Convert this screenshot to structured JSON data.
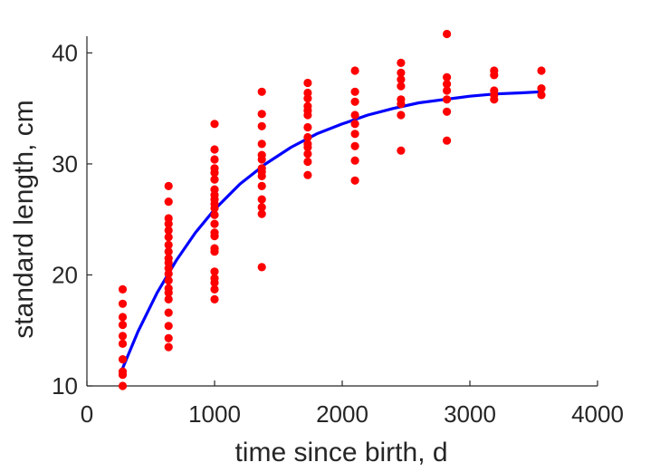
{
  "chart_data": {
    "type": "scatter",
    "title": "",
    "xlabel": "time since birth, d",
    "ylabel": "standard length, cm",
    "xlim": [
      0,
      4000
    ],
    "ylim": [
      10,
      41.5
    ],
    "xticks": [
      0,
      1000,
      2000,
      3000,
      4000
    ],
    "yticks": [
      10,
      20,
      30,
      40
    ],
    "xtick_labels": [
      "0",
      "1000",
      "2000",
      "3000",
      "4000"
    ],
    "ytick_labels": [
      "10",
      "20",
      "30",
      "40"
    ],
    "grid": false,
    "legend": "none",
    "colors": {
      "points": "#ff0000",
      "curve": "#0000ff",
      "axis": "#262626"
    },
    "series": [
      {
        "kind": "scatter",
        "groups": [
          {
            "x": 280,
            "y": [
              18.7,
              17.4,
              16.2,
              15.5,
              14.5,
              13.8,
              12.4,
              11.3,
              11.0,
              10.0
            ]
          },
          {
            "x": 640,
            "y": [
              28.0,
              26.6,
              25.1,
              24.6,
              24.0,
              23.4,
              22.7,
              22.1,
              21.5,
              21.1,
              20.6,
              20.1,
              19.5,
              18.8,
              18.4,
              17.8,
              16.6,
              15.4,
              14.3,
              13.5
            ]
          },
          {
            "x": 1000,
            "y": [
              33.6,
              31.3,
              30.4,
              29.6,
              29.2,
              28.6,
              27.7,
              27.2,
              26.8,
              26.4,
              26.0,
              25.4,
              24.6,
              23.8,
              23.5,
              22.4,
              22.1,
              20.3,
              19.7,
              19.3,
              18.7,
              17.8
            ]
          },
          {
            "x": 1370,
            "y": [
              36.5,
              34.5,
              33.4,
              31.8,
              30.8,
              30.4,
              29.6,
              29.3,
              28.9,
              28.0,
              26.8,
              26.1,
              25.5,
              20.7
            ]
          },
          {
            "x": 1730,
            "y": [
              37.3,
              36.4,
              35.9,
              35.2,
              34.8,
              34.4,
              33.3,
              32.4,
              31.8,
              31.5,
              30.9,
              30.2,
              29.0
            ]
          },
          {
            "x": 2100,
            "y": [
              38.4,
              36.5,
              35.6,
              34.4,
              33.6,
              32.7,
              31.6,
              30.3,
              28.5
            ]
          },
          {
            "x": 2460,
            "y": [
              39.1,
              38.2,
              37.6,
              37.0,
              35.8,
              35.4,
              34.4,
              31.2
            ]
          },
          {
            "x": 2820,
            "y": [
              41.7,
              37.8,
              37.2,
              36.6,
              35.8,
              34.7,
              32.1
            ]
          },
          {
            "x": 3190,
            "y": [
              38.4,
              38.0,
              36.6,
              36.2,
              35.8
            ]
          },
          {
            "x": 3560,
            "y": [
              38.4,
              36.8,
              36.2
            ]
          }
        ]
      },
      {
        "kind": "line",
        "x": [
          280,
          400,
          550,
          700,
          850,
          1000,
          1200,
          1400,
          1600,
          1800,
          2000,
          2200,
          2400,
          2600,
          2800,
          3000,
          3200,
          3400,
          3560
        ],
        "y": [
          11.6,
          14.9,
          18.4,
          21.3,
          23.8,
          25.9,
          28.2,
          30.0,
          31.5,
          32.7,
          33.6,
          34.4,
          35.0,
          35.5,
          35.8,
          36.1,
          36.3,
          36.4,
          36.5
        ]
      }
    ]
  }
}
